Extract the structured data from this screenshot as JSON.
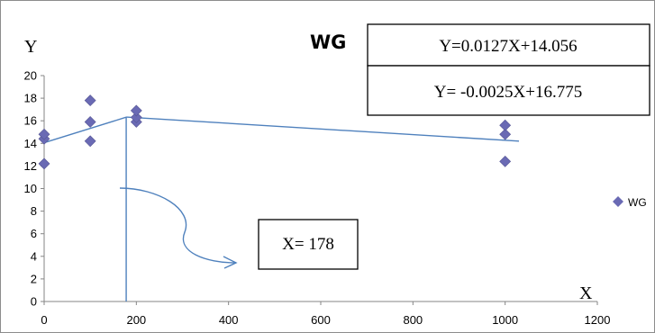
{
  "chart_data": {
    "type": "scatter",
    "title": "WG",
    "xlabel": "X",
    "ylabel": "Y",
    "xlim": [
      0,
      1200
    ],
    "ylim": [
      0,
      20
    ],
    "x_ticks": [
      "0",
      "200",
      "400",
      "600",
      "800",
      "1000",
      "1200"
    ],
    "y_ticks": [
      "0",
      "2",
      "4",
      "6",
      "8",
      "10",
      "12",
      "14",
      "16",
      "18",
      "20"
    ],
    "grid": false,
    "legend": {
      "position": "right",
      "entries": [
        "WG"
      ]
    },
    "series": [
      {
        "name": "WG",
        "color": "#6a6ab4",
        "marker": "diamond",
        "points": [
          {
            "x": 0,
            "y": 12.2
          },
          {
            "x": 0,
            "y": 14.4
          },
          {
            "x": 0,
            "y": 14.8
          },
          {
            "x": 100,
            "y": 14.2
          },
          {
            "x": 100,
            "y": 15.9
          },
          {
            "x": 100,
            "y": 17.8
          },
          {
            "x": 200,
            "y": 15.9
          },
          {
            "x": 200,
            "y": 16.3
          },
          {
            "x": 200,
            "y": 16.9
          },
          {
            "x": 1000,
            "y": 12.4
          },
          {
            "x": 1000,
            "y": 14.8
          },
          {
            "x": 1000,
            "y": 15.6
          }
        ]
      }
    ],
    "fit_lines": {
      "color": "#4f81bd",
      "segments": [
        {
          "x1": 0,
          "x2": 178,
          "slope": 0.0127,
          "intercept": 14.056,
          "equation": "Y=0.0127X+14.056"
        },
        {
          "x1": 178,
          "x2": 1030,
          "slope": -0.0025,
          "intercept": 16.775,
          "equation": "Y= -0.0025X+16.775"
        }
      ]
    },
    "breakpoint": {
      "x": 178,
      "label": "X= 178"
    }
  }
}
